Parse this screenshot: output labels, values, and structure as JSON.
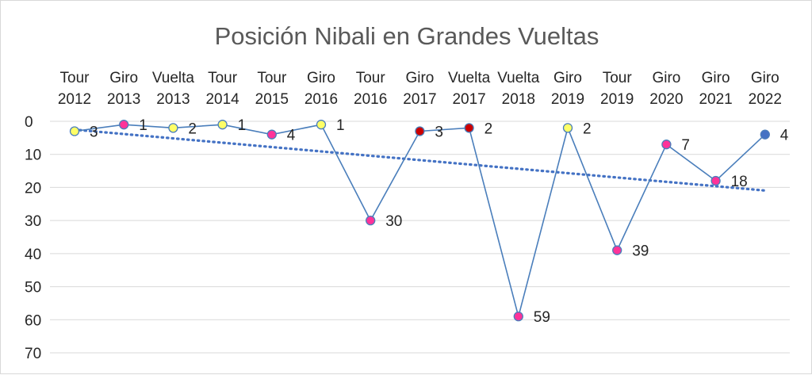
{
  "chart_data": {
    "type": "line",
    "title": "Posición Nibali en Grandes Vueltas",
    "categories": [
      [
        "Tour",
        "2012"
      ],
      [
        "Giro",
        "2013"
      ],
      [
        "Vuelta",
        "2013"
      ],
      [
        "Tour",
        "2014"
      ],
      [
        "Tour",
        "2015"
      ],
      [
        "Giro",
        "2016"
      ],
      [
        "Tour",
        "2016"
      ],
      [
        "Giro",
        "2017"
      ],
      [
        "Vuelta",
        "2017"
      ],
      [
        "Vuelta",
        "2018"
      ],
      [
        "Giro",
        "2019"
      ],
      [
        "Tour",
        "2019"
      ],
      [
        "Giro",
        "2020"
      ],
      [
        "Giro",
        "2021"
      ],
      [
        "Giro",
        "2022"
      ]
    ],
    "values": [
      3,
      1,
      2,
      1,
      4,
      1,
      30,
      3,
      2,
      59,
      2,
      39,
      7,
      18,
      4
    ],
    "data_labels": [
      "3",
      "1",
      "2",
      "1",
      "4",
      "1",
      "30",
      "3",
      "2",
      "59",
      "2",
      "39",
      "7",
      "18",
      "4"
    ],
    "marker_colors": [
      "#ffff66",
      "#ff3399",
      "#ffff66",
      "#ffff66",
      "#ff3399",
      "#ffff66",
      "#ff3399",
      "#cc0000",
      "#cc0000",
      "#ff3399",
      "#ffff66",
      "#ff3399",
      "#ff3399",
      "#ff3399",
      "#4472c4"
    ],
    "line_color": "#4a7ebb",
    "trendline": {
      "type": "linear",
      "style": "dotted",
      "color": "#4472c4"
    },
    "y_axis": {
      "min": 0,
      "max": 70,
      "step": 10,
      "reversed": true,
      "ticks": [
        "0",
        "10",
        "20",
        "30",
        "40",
        "50",
        "60",
        "70"
      ]
    },
    "xlabel": "",
    "ylabel": "",
    "grid": true,
    "legend": "none"
  }
}
